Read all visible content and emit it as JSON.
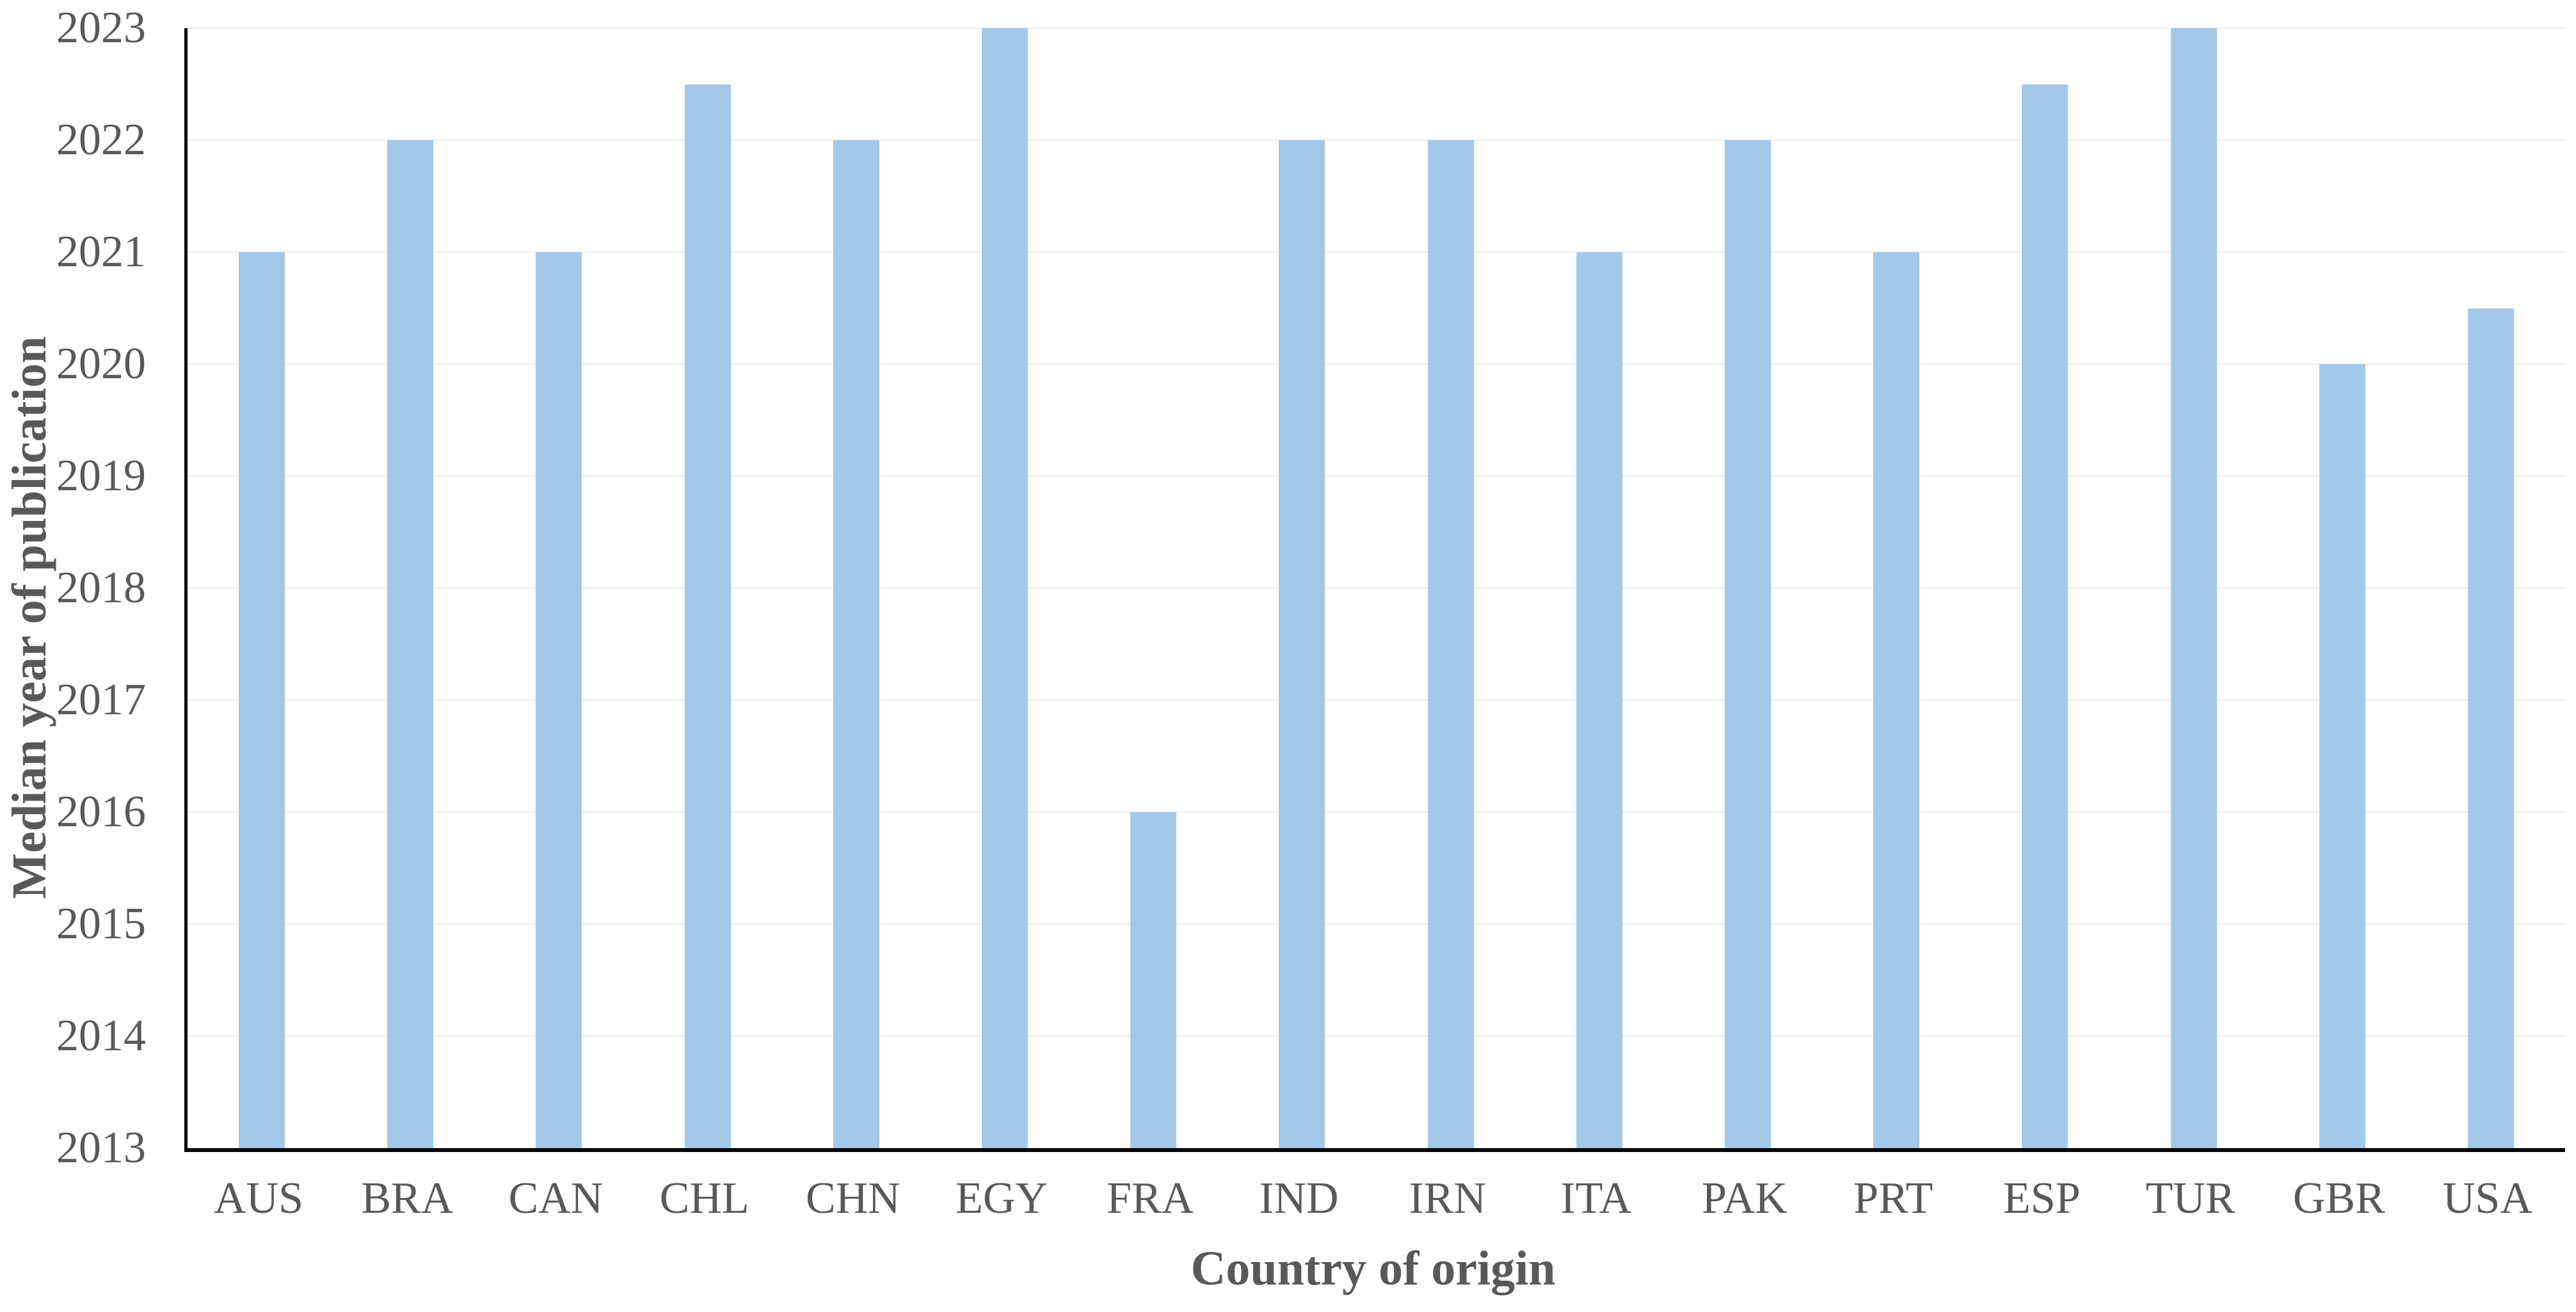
{
  "chart_data": {
    "type": "bar",
    "title": "",
    "xlabel": "Country of origin",
    "ylabel": "Median year of publication",
    "categories": [
      "AUS",
      "BRA",
      "CAN",
      "CHL",
      "CHN",
      "EGY",
      "FRA",
      "IND",
      "IRN",
      "ITA",
      "PAK",
      "PRT",
      "ESP",
      "TUR",
      "GBR",
      "USA"
    ],
    "values": [
      2021,
      2022,
      2021,
      2022.5,
      2022,
      2023,
      2016,
      2022,
      2022,
      2021,
      2022,
      2021,
      2022.5,
      2023,
      2020,
      2020.5
    ],
    "ylim": [
      2013,
      2023
    ],
    "yticks": [
      2013,
      2014,
      2015,
      2016,
      2017,
      2018,
      2019,
      2020,
      2021,
      2022,
      2023
    ],
    "baseline": 2013,
    "grid": "horizontal",
    "legend": "none",
    "colors": {
      "bar": "#a3c9e8",
      "gridline": "#ededed",
      "axis_line": "#000000",
      "text": "#595959"
    }
  }
}
